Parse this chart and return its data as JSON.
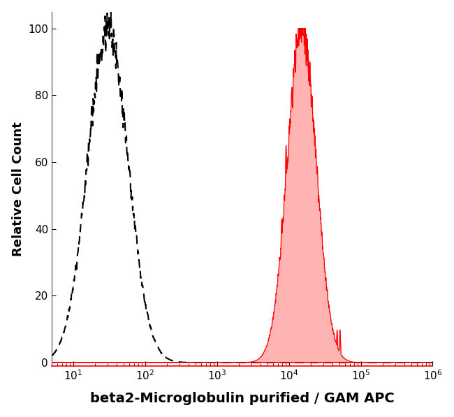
{
  "ylabel": "Relative Cell Count",
  "xlabel": "beta2-Microglobulin purified / GAM APC",
  "xlim": [
    5,
    1000000
  ],
  "ylim": [
    -1,
    105
  ],
  "yticks": [
    0,
    20,
    40,
    60,
    80,
    100
  ],
  "background_color": "#ffffff",
  "dashed_peak_log": 1.48,
  "dashed_sigma_log": 0.28,
  "red_peak_log": 4.18,
  "red_sigma_log": 0.2,
  "red_fill_color": "#ffb3b3",
  "red_line_color": "#ff0000",
  "dashed_line_color": "#000000",
  "label_fontsize": 13,
  "xlabel_fontsize": 14,
  "tick_fontsize": 11
}
